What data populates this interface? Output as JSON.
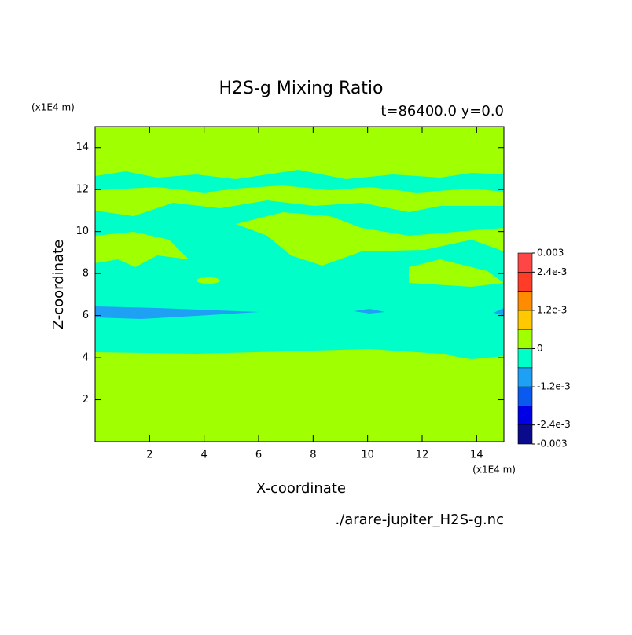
{
  "chart_data": {
    "type": "contour",
    "title": "H2S-g Mixing Ratio",
    "subtitle": "t=86400.0 y=0.0",
    "x_label": "X-coordinate",
    "y_label": "Z-coordinate",
    "x_unit": "(x1E4 m)",
    "y_unit": "(x1E4 m)",
    "source": "./arare-jupiter_H2S-g.nc",
    "xlim": [
      0,
      15
    ],
    "ylim": [
      0,
      15
    ],
    "xticks": [
      2,
      4,
      6,
      8,
      10,
      12,
      14
    ],
    "yticks": [
      2,
      4,
      6,
      8,
      10,
      12,
      14
    ],
    "colorbar": {
      "clim": [
        -0.003,
        0.003
      ],
      "colors": [
        "#0a0a8c",
        "#0000e6",
        "#0a5af0",
        "#1ea0f5",
        "#00ffc8",
        "#a0ff00",
        "#ffc800",
        "#ff8c00",
        "#ff3c28",
        "#ff4646"
      ],
      "ticks": [
        -0.003,
        {
          "value": -0.0024,
          "label": "-2.4e-3"
        },
        {
          "value": -0.0012,
          "label": "-1.2e-3"
        },
        0,
        {
          "value": 0.0012,
          "label": "1.2e-3"
        },
        {
          "value": 0.0024,
          "label": "2.4e-3"
        },
        0.003
      ]
    }
  }
}
